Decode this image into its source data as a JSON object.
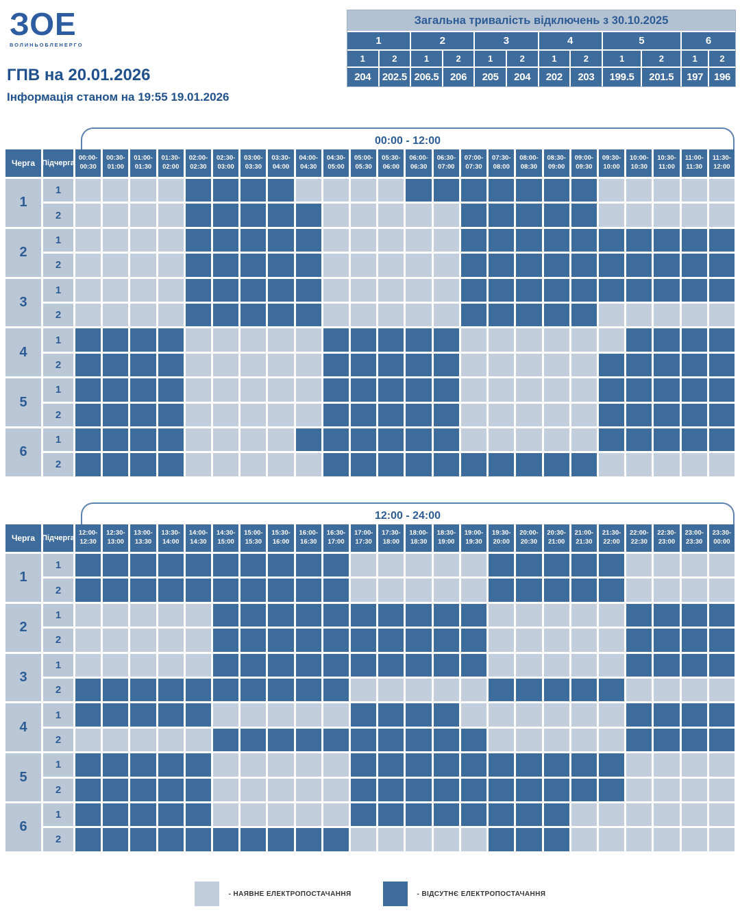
{
  "brand": {
    "logo_text": "ЗОЕ",
    "logo_subtext": "ВОЛИНЬОБЛЕНЕРГО"
  },
  "header": {
    "title": "ГПВ на 20.01.2026",
    "subtitle": "Інформація станом на 19:55 19.01.2026"
  },
  "totals": {
    "title": "Загальна тривалість відключень з 30.10.2025",
    "queues": [
      "1",
      "2",
      "3",
      "4",
      "5",
      "6"
    ],
    "subqueues": [
      "1",
      "2",
      "1",
      "2",
      "1",
      "2",
      "1",
      "2",
      "1",
      "2",
      "1",
      "2"
    ],
    "values": [
      "204",
      "202.5",
      "206.5",
      "206",
      "205",
      "204",
      "202",
      "203",
      "199.5",
      "201.5",
      "197",
      "196"
    ]
  },
  "colors": {
    "power_on": "#c2cedc",
    "power_off": "#3e6c9d",
    "accent_text": "#2d5c94"
  },
  "schedule": {
    "col_queue": "Черга",
    "col_subqueue": "Підчерга",
    "grids": [
      {
        "title": "00:00 - 12:00",
        "slots": [
          [
            "00:00-",
            "00:30"
          ],
          [
            "00:30-",
            "01:00"
          ],
          [
            "01:00-",
            "01:30"
          ],
          [
            "01:30-",
            "02:00"
          ],
          [
            "02:00-",
            "02:30"
          ],
          [
            "02:30-",
            "03:00"
          ],
          [
            "03:00-",
            "03:30"
          ],
          [
            "03:30-",
            "04:00"
          ],
          [
            "04:00-",
            "04:30"
          ],
          [
            "04:30-",
            "05:00"
          ],
          [
            "05:00-",
            "05:30"
          ],
          [
            "05:30-",
            "06:00"
          ],
          [
            "06:00-",
            "06:30"
          ],
          [
            "06:30-",
            "07:00"
          ],
          [
            "07:00-",
            "07:30"
          ],
          [
            "07:30-",
            "08:00"
          ],
          [
            "08:00-",
            "08:30"
          ],
          [
            "08:30-",
            "09:00"
          ],
          [
            "09:00-",
            "09:30"
          ],
          [
            "09:30-",
            "10:00"
          ],
          [
            "10:00-",
            "10:30"
          ],
          [
            "10:30-",
            "11:00"
          ],
          [
            "11:00-",
            "11:30"
          ],
          [
            "11:30-",
            "12:00"
          ]
        ],
        "rows": [
          {
            "queue": "1",
            "sub": "1",
            "cells": "000011110000111111100000"
          },
          {
            "queue": "",
            "sub": "2",
            "cells": "000011111000001111100000"
          },
          {
            "queue": "2",
            "sub": "1",
            "cells": "000011111000001111111111"
          },
          {
            "queue": "",
            "sub": "2",
            "cells": "000011111000001111111111"
          },
          {
            "queue": "3",
            "sub": "1",
            "cells": "000011111000001111111111"
          },
          {
            "queue": "",
            "sub": "2",
            "cells": "000011111000001111100000"
          },
          {
            "queue": "4",
            "sub": "1",
            "cells": "111100000111110000001111"
          },
          {
            "queue": "",
            "sub": "2",
            "cells": "111100000111110000011111"
          },
          {
            "queue": "5",
            "sub": "1",
            "cells": "111100000111110000011111"
          },
          {
            "queue": "",
            "sub": "2",
            "cells": "111100000111110000011111"
          },
          {
            "queue": "6",
            "sub": "1",
            "cells": "111100001111110000011111"
          },
          {
            "queue": "",
            "sub": "2",
            "cells": "111100000111111111100000"
          }
        ]
      },
      {
        "title": "12:00 - 24:00",
        "slots": [
          [
            "12:00-",
            "12:30"
          ],
          [
            "12:30-",
            "13:00"
          ],
          [
            "13:00-",
            "13:30"
          ],
          [
            "13:30-",
            "14:00"
          ],
          [
            "14:00-",
            "14:30"
          ],
          [
            "14:30-",
            "15:00"
          ],
          [
            "15:00-",
            "15:30"
          ],
          [
            "15:30-",
            "16:00"
          ],
          [
            "16:00-",
            "16:30"
          ],
          [
            "16:30-",
            "17:00"
          ],
          [
            "17:00-",
            "17:30"
          ],
          [
            "17:30-",
            "18:00"
          ],
          [
            "18:00-",
            "18:30"
          ],
          [
            "18:30-",
            "19:00"
          ],
          [
            "19:00-",
            "19:30"
          ],
          [
            "19:30-",
            "20:00"
          ],
          [
            "20:00-",
            "20:30"
          ],
          [
            "20:30-",
            "21:00"
          ],
          [
            "21:00-",
            "21:30"
          ],
          [
            "21:30-",
            "22:00"
          ],
          [
            "22:00-",
            "22:30"
          ],
          [
            "22:30-",
            "23:00"
          ],
          [
            "23:00-",
            "23:30"
          ],
          [
            "23:30-",
            "00:00"
          ]
        ],
        "rows": [
          {
            "queue": "1",
            "sub": "1",
            "cells": "111111111100000111110000"
          },
          {
            "queue": "",
            "sub": "2",
            "cells": "111111111100000111110000"
          },
          {
            "queue": "2",
            "sub": "1",
            "cells": "000001111111111000001111"
          },
          {
            "queue": "",
            "sub": "2",
            "cells": "000001111111111000001111"
          },
          {
            "queue": "3",
            "sub": "1",
            "cells": "000001111111111000001111"
          },
          {
            "queue": "",
            "sub": "2",
            "cells": "111111111100000111110000"
          },
          {
            "queue": "4",
            "sub": "1",
            "cells": "111110000011110000001111"
          },
          {
            "queue": "",
            "sub": "2",
            "cells": "000001111111111000001111"
          },
          {
            "queue": "5",
            "sub": "1",
            "cells": "111110000011111111110000"
          },
          {
            "queue": "",
            "sub": "2",
            "cells": "111110000011111111110000"
          },
          {
            "queue": "6",
            "sub": "1",
            "cells": "111110000011111111000000"
          },
          {
            "queue": "",
            "sub": "2",
            "cells": "111111111100000111000000"
          }
        ]
      }
    ]
  },
  "legend": {
    "available": "- НАЯВНЕ ЕЛЕКТРОПОСТАЧАННЯ",
    "absent": "- ВІДСУТНЄ ЕЛЕКТРОПОСТАЧАННЯ"
  }
}
